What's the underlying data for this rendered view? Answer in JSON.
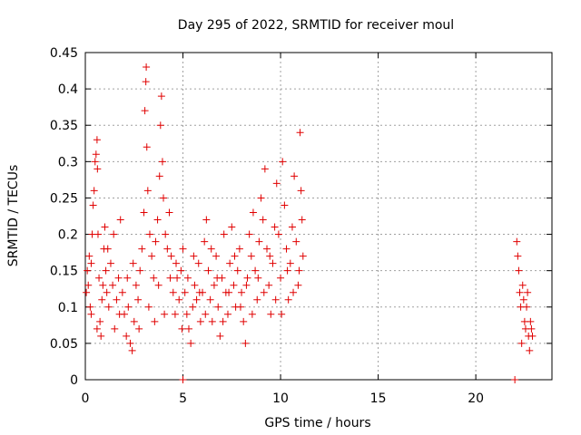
{
  "chart_data": {
    "type": "scatter",
    "title": "Day 295 of 2022, SRMTID for receiver moul",
    "xlabel": "GPS time / hours",
    "ylabel": "SRMTID / TECUs",
    "xlim": [
      0,
      23.9
    ],
    "ylim": [
      0,
      0.45
    ],
    "xticks": [
      "0",
      "5",
      "10",
      "15",
      "20"
    ],
    "xtick_values": [
      0,
      5,
      10,
      15,
      20
    ],
    "yticks": [
      "0",
      "0.05",
      "0.1",
      "0.15",
      "0.2",
      "0.25",
      "0.3",
      "0.35",
      "0.4",
      "0.45"
    ],
    "ytick_values": [
      0,
      0.05,
      0.1,
      0.15,
      0.2,
      0.25,
      0.3,
      0.35,
      0.4,
      0.45
    ],
    "grid": true,
    "marker": "plus",
    "color": "#e00000",
    "series": [
      {
        "name": "SRMTID",
        "points": [
          [
            0.05,
            0.12
          ],
          [
            0.1,
            0.15
          ],
          [
            0.15,
            0.13
          ],
          [
            0.2,
            0.17
          ],
          [
            0.25,
            0.1
          ],
          [
            0.3,
            0.16
          ],
          [
            0.35,
            0.2
          ],
          [
            0.4,
            0.24
          ],
          [
            0.45,
            0.26
          ],
          [
            0.5,
            0.3
          ],
          [
            0.55,
            0.31
          ],
          [
            0.6,
            0.33
          ],
          [
            0.62,
            0.29
          ],
          [
            0.65,
            0.2
          ],
          [
            0.7,
            0.14
          ],
          [
            0.75,
            0.08
          ],
          [
            0.8,
            0.06
          ],
          [
            0.85,
            0.11
          ],
          [
            0.9,
            0.13
          ],
          [
            0.95,
            0.18
          ],
          [
            1.0,
            0.21
          ],
          [
            1.05,
            0.15
          ],
          [
            1.1,
            0.12
          ],
          [
            1.2,
            0.1
          ],
          [
            1.3,
            0.16
          ],
          [
            1.4,
            0.13
          ],
          [
            1.5,
            0.07
          ],
          [
            1.6,
            0.11
          ],
          [
            1.7,
            0.14
          ],
          [
            1.8,
            0.22
          ],
          [
            1.9,
            0.12
          ],
          [
            2.0,
            0.09
          ],
          [
            2.1,
            0.06
          ],
          [
            2.2,
            0.1
          ],
          [
            2.3,
            0.05
          ],
          [
            2.4,
            0.04
          ],
          [
            2.5,
            0.08
          ],
          [
            2.6,
            0.13
          ],
          [
            2.7,
            0.11
          ],
          [
            2.8,
            0.15
          ],
          [
            2.9,
            0.18
          ],
          [
            3.0,
            0.23
          ],
          [
            3.05,
            0.37
          ],
          [
            3.1,
            0.41
          ],
          [
            3.12,
            0.43
          ],
          [
            3.15,
            0.32
          ],
          [
            3.2,
            0.26
          ],
          [
            3.3,
            0.2
          ],
          [
            3.4,
            0.17
          ],
          [
            3.5,
            0.14
          ],
          [
            3.6,
            0.19
          ],
          [
            3.7,
            0.22
          ],
          [
            3.8,
            0.28
          ],
          [
            3.85,
            0.35
          ],
          [
            3.9,
            0.39
          ],
          [
            3.95,
            0.3
          ],
          [
            4.0,
            0.25
          ],
          [
            4.1,
            0.2
          ],
          [
            4.2,
            0.18
          ],
          [
            4.3,
            0.23
          ],
          [
            4.4,
            0.17
          ],
          [
            4.5,
            0.12
          ],
          [
            4.6,
            0.09
          ],
          [
            4.7,
            0.14
          ],
          [
            4.8,
            0.11
          ],
          [
            4.9,
            0.15
          ],
          [
            5.0,
            0.18
          ],
          [
            5.1,
            0.12
          ],
          [
            5.2,
            0.09
          ],
          [
            5.3,
            0.07
          ],
          [
            5.4,
            0.05
          ],
          [
            5.5,
            0.1
          ],
          [
            5.6,
            0.13
          ],
          [
            5.7,
            0.11
          ],
          [
            5.8,
            0.16
          ],
          [
            5.9,
            0.08
          ],
          [
            6.0,
            0.12
          ],
          [
            6.1,
            0.19
          ],
          [
            6.2,
            0.22
          ],
          [
            6.3,
            0.15
          ],
          [
            6.4,
            0.11
          ],
          [
            6.5,
            0.08
          ],
          [
            6.6,
            0.13
          ],
          [
            6.7,
            0.17
          ],
          [
            6.8,
            0.1
          ],
          [
            6.9,
            0.06
          ],
          [
            7.0,
            0.14
          ],
          [
            7.1,
            0.2
          ],
          [
            7.2,
            0.12
          ],
          [
            7.3,
            0.09
          ],
          [
            7.4,
            0.16
          ],
          [
            7.5,
            0.21
          ],
          [
            7.6,
            0.13
          ],
          [
            7.7,
            0.1
          ],
          [
            7.8,
            0.15
          ],
          [
            7.9,
            0.18
          ],
          [
            8.0,
            0.12
          ],
          [
            8.1,
            0.08
          ],
          [
            8.2,
            0.05
          ],
          [
            8.3,
            0.14
          ],
          [
            8.4,
            0.2
          ],
          [
            8.5,
            0.17
          ],
          [
            8.6,
            0.23
          ],
          [
            8.7,
            0.15
          ],
          [
            8.8,
            0.11
          ],
          [
            8.9,
            0.19
          ],
          [
            9.0,
            0.25
          ],
          [
            9.1,
            0.22
          ],
          [
            9.2,
            0.29
          ],
          [
            9.3,
            0.18
          ],
          [
            9.4,
            0.13
          ],
          [
            9.5,
            0.09
          ],
          [
            9.6,
            0.16
          ],
          [
            9.7,
            0.21
          ],
          [
            9.8,
            0.27
          ],
          [
            9.9,
            0.2
          ],
          [
            10.0,
            0.14
          ],
          [
            10.1,
            0.3
          ],
          [
            10.2,
            0.24
          ],
          [
            10.3,
            0.18
          ],
          [
            10.4,
            0.11
          ],
          [
            10.5,
            0.16
          ],
          [
            10.6,
            0.21
          ],
          [
            10.7,
            0.28
          ],
          [
            10.8,
            0.19
          ],
          [
            10.9,
            0.13
          ],
          [
            11.0,
            0.34
          ],
          [
            11.05,
            0.26
          ],
          [
            11.1,
            0.22
          ],
          [
            11.15,
            0.17
          ],
          [
            0.3,
            0.09
          ],
          [
            0.6,
            0.07
          ],
          [
            1.15,
            0.18
          ],
          [
            1.45,
            0.2
          ],
          [
            1.75,
            0.09
          ],
          [
            2.15,
            0.14
          ],
          [
            2.45,
            0.16
          ],
          [
            2.75,
            0.07
          ],
          [
            3.25,
            0.1
          ],
          [
            3.55,
            0.08
          ],
          [
            3.75,
            0.13
          ],
          [
            4.05,
            0.09
          ],
          [
            4.35,
            0.14
          ],
          [
            4.65,
            0.16
          ],
          [
            4.95,
            0.07
          ],
          [
            5.25,
            0.14
          ],
          [
            5.55,
            0.17
          ],
          [
            5.85,
            0.12
          ],
          [
            6.15,
            0.09
          ],
          [
            6.45,
            0.18
          ],
          [
            6.75,
            0.14
          ],
          [
            7.05,
            0.08
          ],
          [
            7.35,
            0.12
          ],
          [
            7.65,
            0.17
          ],
          [
            7.95,
            0.1
          ],
          [
            8.25,
            0.13
          ],
          [
            8.55,
            0.09
          ],
          [
            8.85,
            0.14
          ],
          [
            9.15,
            0.12
          ],
          [
            9.45,
            0.17
          ],
          [
            9.75,
            0.11
          ],
          [
            10.05,
            0.09
          ],
          [
            10.35,
            0.15
          ],
          [
            10.65,
            0.12
          ],
          [
            10.95,
            0.15
          ],
          [
            5.0,
            0.0
          ],
          [
            22.0,
            0.0
          ],
          [
            22.1,
            0.19
          ],
          [
            22.15,
            0.17
          ],
          [
            22.2,
            0.15
          ],
          [
            22.25,
            0.12
          ],
          [
            22.3,
            0.1
          ],
          [
            22.35,
            0.05
          ],
          [
            22.4,
            0.13
          ],
          [
            22.45,
            0.11
          ],
          [
            22.5,
            0.08
          ],
          [
            22.55,
            0.07
          ],
          [
            22.6,
            0.1
          ],
          [
            22.65,
            0.12
          ],
          [
            22.7,
            0.06
          ],
          [
            22.75,
            0.04
          ],
          [
            22.8,
            0.08
          ],
          [
            22.85,
            0.07
          ],
          [
            22.9,
            0.06
          ]
        ]
      }
    ]
  }
}
